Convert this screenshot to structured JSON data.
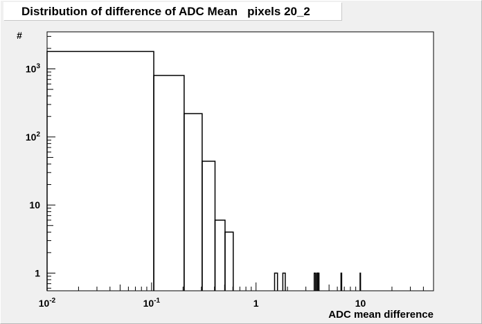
{
  "title": "Distribution of difference of ADC Mean   pixels 20_2",
  "chart_data": {
    "type": "histogram",
    "title": "Distribution of difference of ADC Mean   pixels 20_2",
    "xlabel": "ADC mean difference",
    "ylabel": "#",
    "x_scale": "log",
    "y_scale": "log",
    "xlim": [
      0.01,
      50
    ],
    "ylim": [
      0.55,
      3500
    ],
    "x_ticks": [
      {
        "value": 0.01,
        "label": "10",
        "exp": "-2"
      },
      {
        "value": 0.1,
        "label": "10",
        "exp": "-1"
      },
      {
        "value": 1,
        "label": "1",
        "exp": ""
      },
      {
        "value": 10,
        "label": "10",
        "exp": ""
      }
    ],
    "y_ticks": [
      {
        "value": 1,
        "label": "1",
        "exp": ""
      },
      {
        "value": 10,
        "label": "10",
        "exp": ""
      },
      {
        "value": 100,
        "label": "10",
        "exp": "2"
      },
      {
        "value": 1000,
        "label": "10",
        "exp": "3"
      }
    ],
    "bins": [
      {
        "x0": 0.01,
        "x1": 0.105,
        "count": 1800
      },
      {
        "x0": 0.105,
        "x1": 0.205,
        "count": 800
      },
      {
        "x0": 0.205,
        "x1": 0.305,
        "count": 220
      },
      {
        "x0": 0.305,
        "x1": 0.405,
        "count": 44
      },
      {
        "x0": 0.405,
        "x1": 0.505,
        "count": 6
      },
      {
        "x0": 0.505,
        "x1": 0.605,
        "count": 4
      },
      {
        "x0": 1.505,
        "x1": 1.605,
        "count": 1
      },
      {
        "x0": 1.805,
        "x1": 1.905,
        "count": 1
      },
      {
        "x0": 3.605,
        "x1": 3.705,
        "count": 1
      },
      {
        "x0": 3.805,
        "x1": 3.905,
        "count": 1
      },
      {
        "x0": 3.905,
        "x1": 4.005,
        "count": 1
      },
      {
        "x0": 6.505,
        "x1": 6.605,
        "count": 1
      },
      {
        "x0": 9.905,
        "x1": 10.005,
        "count": 1
      }
    ],
    "grid": false,
    "color": "#000000"
  }
}
